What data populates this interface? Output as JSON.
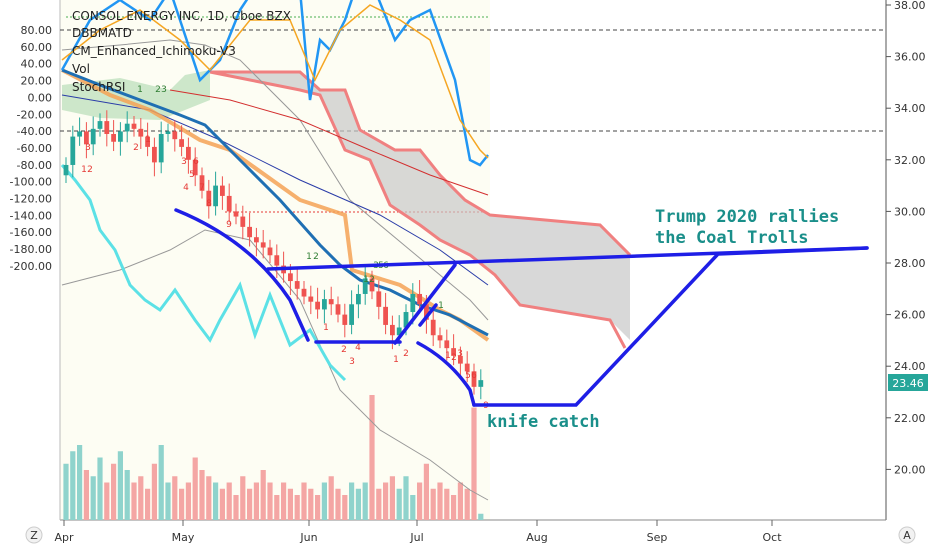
{
  "chart_data": {
    "type": "candlestick",
    "title": "CONSOL ENERGY INC, 1D, Cboe BZX",
    "indicators": [
      "DBBMATD",
      "CM_Enhanced_Ichimoku-V3",
      "Vol",
      "StochRSI"
    ],
    "x_labels": [
      "Apr",
      "May",
      "Jun",
      "Jul",
      "Aug",
      "Sep",
      "Oct"
    ],
    "price_axis": {
      "ticks": [
        20.0,
        22.0,
        24.0,
        26.0,
        28.0,
        30.0,
        32.0,
        34.0,
        36.0,
        38.0
      ],
      "last_price": 23.46,
      "last_price_color": "#26a69a"
    },
    "osc_axis": {
      "ticks": [
        80.0,
        60.0,
        40.0,
        20.0,
        0.0,
        -20.0,
        -40.0,
        -60.0,
        -80.0,
        -100.0,
        -120.0,
        -140.0,
        -160.0,
        -180.0,
        -200.0
      ]
    },
    "candles_close": [
      31.8,
      32.9,
      33.1,
      32.6,
      33.2,
      33.5,
      33.0,
      32.7,
      33.1,
      33.4,
      33.2,
      32.9,
      32.5,
      31.9,
      33.0,
      33.1,
      32.8,
      32.5,
      32.0,
      31.4,
      30.8,
      30.2,
      31.0,
      30.6,
      30.0,
      29.8,
      29.4,
      29.0,
      28.8,
      28.6,
      28.3,
      27.9,
      27.6,
      27.3,
      27.0,
      26.7,
      26.5,
      26.2,
      26.6,
      26.4,
      26.0,
      25.6,
      26.4,
      26.8,
      27.4,
      26.9,
      26.3,
      25.6,
      25.2,
      25.5,
      26.1,
      26.8,
      26.4,
      25.8,
      25.2,
      25.0,
      24.7,
      24.4,
      24.1,
      23.8,
      23.2,
      23.46
    ],
    "volume_relative": [
      0.45,
      0.55,
      0.6,
      0.4,
      0.35,
      0.5,
      0.3,
      0.45,
      0.55,
      0.4,
      0.3,
      0.35,
      0.25,
      0.45,
      0.6,
      0.3,
      0.35,
      0.25,
      0.3,
      0.5,
      0.4,
      0.35,
      0.3,
      0.25,
      0.3,
      0.2,
      0.35,
      0.25,
      0.3,
      0.4,
      0.3,
      0.2,
      0.3,
      0.25,
      0.2,
      0.3,
      0.25,
      0.2,
      0.3,
      0.35,
      0.25,
      0.2,
      0.3,
      0.25,
      0.3,
      1.0,
      0.25,
      0.3,
      0.35,
      0.25,
      0.35,
      0.2,
      0.3,
      0.45,
      0.25,
      0.3,
      0.25,
      0.2,
      0.3,
      0.25,
      0.9,
      0.05
    ]
  },
  "annotations": {
    "line1": "Trump 2020 rallies",
    "line2": "the Coal Trolls",
    "knife": "knife catch"
  },
  "colors": {
    "up": "#26a69a",
    "down": "#ef5350",
    "cloud_edge": "#f08080",
    "cloud_fill": "#c8c8c8",
    "stoch_k": "#2196f3",
    "stoch_d": "#f5a623",
    "cci": "#5ce1e6",
    "drawing": "#1e1ee6",
    "annotation_text": "#1a8f8a"
  },
  "icons": {
    "left_corner": "Z",
    "right_corner": "A"
  }
}
